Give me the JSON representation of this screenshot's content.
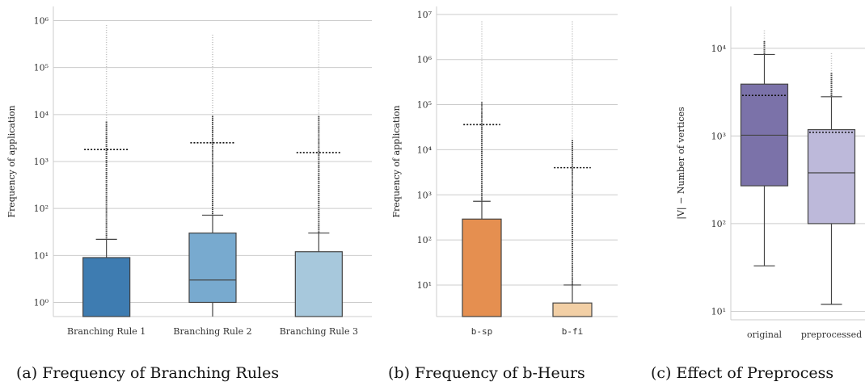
{
  "chart_data": [
    {
      "type": "boxplot",
      "panel": "a",
      "caption": "(a) Frequency of Branching Rules",
      "ylabel": "Frequency of application",
      "yscale": "log",
      "ylim": [
        0.5,
        2000000
      ],
      "yticks": [
        1,
        10,
        100,
        1000,
        10000,
        100000,
        1000000
      ],
      "categories": [
        "Branching Rule 1",
        "Branching Rule 2",
        "Branching Rule 3"
      ],
      "colors": [
        "#3e7cb1",
        "#78aacf",
        "#a7c8dc"
      ],
      "mono_labels": false,
      "boxes": [
        {
          "q1": 0.5,
          "median": 0.5,
          "q3": 9,
          "whisker_low": 0.5,
          "whisker_high": 22,
          "mean": 1800,
          "outlier_max": 800000
        },
        {
          "q1": 1,
          "median": 3,
          "q3": 30,
          "whisker_low": 0.5,
          "whisker_high": 72,
          "mean": 2500,
          "outlier_max": 500000
        },
        {
          "q1": 0.5,
          "median": 0.5,
          "q3": 12,
          "whisker_low": 0.5,
          "whisker_high": 30,
          "mean": 1550,
          "outlier_max": 1000000
        }
      ]
    },
    {
      "type": "boxplot",
      "panel": "b",
      "caption": "(b) Frequency of b-Heurs",
      "ylabel": "Frequency of application",
      "yscale": "log",
      "ylim": [
        2,
        15000000
      ],
      "yticks": [
        10,
        100,
        1000,
        10000,
        100000,
        1000000,
        10000000
      ],
      "categories": [
        "b-sp",
        "b-fi"
      ],
      "colors": [
        "#e58f50",
        "#f2cfa5"
      ],
      "mono_labels": true,
      "boxes": [
        {
          "q1": 2,
          "median": 2,
          "q3": 290,
          "whisker_low": 2,
          "whisker_high": 720,
          "mean": 36000,
          "outlier_max": 7000000
        },
        {
          "q1": 2,
          "median": 2,
          "q3": 4,
          "whisker_low": 2,
          "whisker_high": 10,
          "mean": 4000,
          "outlier_max": 7000000
        }
      ]
    },
    {
      "type": "boxplot",
      "panel": "c",
      "caption": "(c) Effect of Preprocess",
      "ylabel": "|V| − Number of vertices",
      "yscale": "log",
      "ylim": [
        8,
        30000
      ],
      "yticks": [
        10,
        100,
        1000,
        10000
      ],
      "categories": [
        "original",
        "preprocessed"
      ],
      "colors": [
        "#7b72a9",
        "#bdb9da"
      ],
      "mono_labels": false,
      "boxes": [
        {
          "q1": 270,
          "median": 1020,
          "q3": 3900,
          "whisker_low": 33,
          "whisker_high": 8500,
          "mean": 2900,
          "outlier_max": 16000
        },
        {
          "q1": 100,
          "median": 380,
          "q3": 1180,
          "whisker_low": 12,
          "whisker_high": 2800,
          "mean": 1100,
          "outlier_max": 8800
        }
      ]
    }
  ]
}
